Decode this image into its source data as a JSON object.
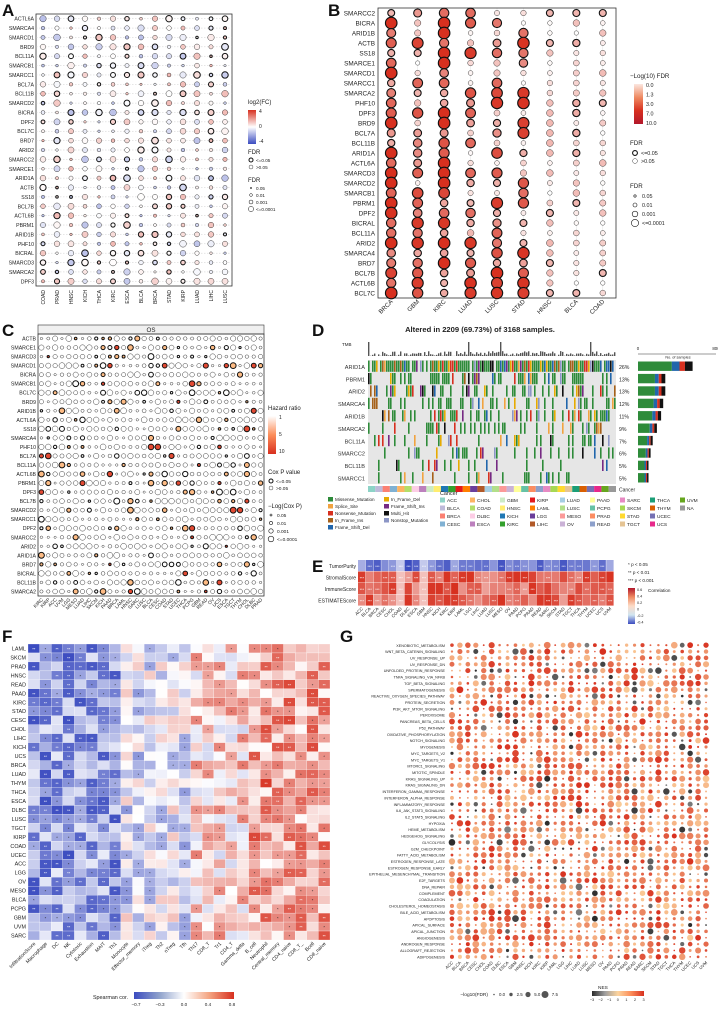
{
  "figure": {
    "panels": [
      {
        "letter": "A"
      },
      {
        "letter": "B"
      },
      {
        "letter": "C"
      },
      {
        "letter": "D"
      },
      {
        "letter": "E"
      },
      {
        "letter": "F"
      },
      {
        "letter": "G"
      }
    ]
  },
  "panelA": {
    "genes": [
      "ACTL6A",
      "SMARCA4",
      "SMARCD1",
      "BRD9",
      "BCL11A",
      "SMARCB1",
      "SMARCC1",
      "BCL7A",
      "BCL11B",
      "SMARCD2",
      "BICRA",
      "DPF2",
      "BCL7C",
      "BRD7",
      "ARID2",
      "SMARCC2",
      "SMARCE1",
      "ARID1A",
      "ACTB",
      "SS18",
      "BCL7B",
      "ACTL6B",
      "PBRM1",
      "ARID1B",
      "PHF10",
      "BICRAL",
      "SMARCD3",
      "SMARCA2",
      "DPF3"
    ],
    "cancers": [
      "COAD",
      "PRAD",
      "HNSC",
      "KICH",
      "THCA",
      "KIRC",
      "ESCA",
      "BLCA",
      "BRCA",
      "STAD",
      "KIRP",
      "LUAD",
      "LIHC",
      "LUSC"
    ],
    "legend": {
      "title": "log2(FC)",
      "ticks": [
        "4",
        "0",
        "-4"
      ],
      "fdr_title": "FDR",
      "fdr_items": [
        "<=0.05",
        ">0.05"
      ],
      "fdr2_title": "FDR",
      "fdr2_items": [
        "0.05",
        "0.01",
        "0.001",
        "<=0.0001"
      ]
    }
  },
  "panelB": {
    "genes": [
      "SMARCC2",
      "BICRA",
      "ARID1B",
      "ACTB",
      "SS18",
      "SMARCE1",
      "SMARCD1",
      "SMARCC1",
      "SMARCA2",
      "PHF10",
      "DPF3",
      "BRD9",
      "BCL7A",
      "BCL11B",
      "ARID1A",
      "ACTL6A",
      "SMARCD3",
      "SMARCD2",
      "SMARCB1",
      "PBRM1",
      "DPF2",
      "BICRAL",
      "BCL11A",
      "ARID2",
      "SMARCA4",
      "BRD7",
      "BCL7B",
      "ACTL6B",
      "BCL7C"
    ],
    "cancers": [
      "BRCA",
      "GBM",
      "KIRC",
      "LUAD",
      "LUSC",
      "STAD",
      "HNSC",
      "BLCA",
      "COAD"
    ],
    "legend": {
      "title": "−Log(10) FDR",
      "ticks": [
        "0.0",
        "1.3",
        "3.0",
        "7.0",
        "10.0"
      ],
      "fdr_title": "FDR",
      "fdr_items": [
        "<=0.05",
        ">0.05"
      ],
      "fdr2_title": "FDR",
      "fdr2_items": [
        "0.05",
        "0.01",
        "0.001",
        "<=0.0001"
      ]
    }
  },
  "panelC": {
    "title": "OS",
    "genes": [
      "ACTB",
      "SMARCE1",
      "SMARCD3",
      "SMARCD1",
      "BICRA",
      "SMARCB1",
      "BCL7C",
      "BRD9",
      "ARID1B",
      "ACTL6A",
      "SS18",
      "SMARCA4",
      "PHF10",
      "BCL7A",
      "BCL11A",
      "ACTL6B",
      "PBRM1",
      "DPF3",
      "BCL7B",
      "SMARCD2",
      "SMARCC1",
      "DPF2",
      "SMARCC2",
      "ARID2",
      "ARID1A",
      "BRD7",
      "BICRAL",
      "BCL11B",
      "SMARCA2"
    ],
    "cancers": [
      "KIRC",
      "KIRP",
      "ACC",
      "UVM",
      "LGG",
      "MESO",
      "LUAD",
      "LIHC",
      "SKCM",
      "KICH",
      "PAAD",
      "BRCA",
      "LAML",
      "HNSC",
      "SARC",
      "LUSC",
      "BLCA",
      "CESC",
      "COAD",
      "STAD",
      "UCEC",
      "THCA",
      "PCPG",
      "GBM",
      "READ",
      "OV",
      "UCS",
      "ESCA",
      "TGCT",
      "THYM",
      "CHOL",
      "DLBC",
      "PRAD"
    ],
    "legend": {
      "title": "Hazard ratio",
      "ticks": [
        "1",
        "5",
        "10"
      ],
      "cox_title": "Cox P value",
      "cox_items": [
        "<=0.05",
        ">0.05"
      ],
      "log_title": "−Log(Cox P)",
      "log_items": [
        "0.05",
        "0.01",
        "0.001",
        "<=0.0001"
      ]
    }
  },
  "panelD": {
    "title": "Altered in 2209 (69.73%) of 3168 samples.",
    "tmb_label": "TMB",
    "genes": [
      {
        "name": "ARID1A",
        "pct": "26%"
      },
      {
        "name": "PBRM1",
        "pct": "13%"
      },
      {
        "name": "ARID2",
        "pct": "13%"
      },
      {
        "name": "SMARCA4",
        "pct": "12%"
      },
      {
        "name": "ARID1B",
        "pct": "11%"
      },
      {
        "name": "SMARCA2",
        "pct": "9%"
      },
      {
        "name": "BCL11A",
        "pct": "7%"
      },
      {
        "name": "SMARCC2",
        "pct": "6%"
      },
      {
        "name": "BCL11B",
        "pct": "5%"
      },
      {
        "name": "SMARCC1",
        "pct": "5%"
      }
    ],
    "axis_label": "No. of samples",
    "axis_ticks": [
      "0",
      "800"
    ],
    "cancer_label": "Cancer",
    "mutation_legend": [
      {
        "label": "Missense_Mutation",
        "color": "#2e8b3a"
      },
      {
        "label": "Splice_Site",
        "color": "#f1a340"
      },
      {
        "label": "Nonsense_Mutation",
        "color": "#d7301f"
      },
      {
        "label": "In_Frame_Ins",
        "color": "#a6611a"
      },
      {
        "label": "Frame_Shift_Del",
        "color": "#2166ac"
      },
      {
        "label": "In_Frame_Del",
        "color": "#e6ab02"
      },
      {
        "label": "Frame_Shift_Ins",
        "color": "#762a83"
      },
      {
        "label": "Multi_Hit",
        "color": "#111111"
      },
      {
        "label": "Nonstop_Mutation",
        "color": "#8c96c6"
      }
    ],
    "cancer_legend_title": "Cancer",
    "cancer_legend": [
      {
        "label": "ACC",
        "color": "#8dd3c7"
      },
      {
        "label": "BLCA",
        "color": "#bebada"
      },
      {
        "label": "BRCA",
        "color": "#fb8072"
      },
      {
        "label": "CESC",
        "color": "#80b1d3"
      },
      {
        "label": "CHOL",
        "color": "#fdb462"
      },
      {
        "label": "COAD",
        "color": "#b3de69"
      },
      {
        "label": "DLBC",
        "color": "#fccde5"
      },
      {
        "label": "ESCA",
        "color": "#bc80bd"
      },
      {
        "label": "GBM",
        "color": "#ccebc5"
      },
      {
        "label": "HNSC",
        "color": "#ffed6f"
      },
      {
        "label": "KICH",
        "color": "#1f78b4"
      },
      {
        "label": "KIRC",
        "color": "#33a02c"
      },
      {
        "label": "KIRP",
        "color": "#e31a1c"
      },
      {
        "label": "LAML",
        "color": "#ff7f00"
      },
      {
        "label": "LGG",
        "color": "#6a3d9a"
      },
      {
        "label": "LIHC",
        "color": "#b15928"
      },
      {
        "label": "LUAD",
        "color": "#a6cee3"
      },
      {
        "label": "LUSC",
        "color": "#b2df8a"
      },
      {
        "label": "MESO",
        "color": "#fb9a99"
      },
      {
        "label": "OV",
        "color": "#cab2d6"
      },
      {
        "label": "PAAD",
        "color": "#ffff99"
      },
      {
        "label": "PCPG",
        "color": "#66c2a5"
      },
      {
        "label": "PRAD",
        "color": "#fc8d62"
      },
      {
        "label": "READ",
        "color": "#8da0cb"
      },
      {
        "label": "SARC",
        "color": "#e78ac3"
      },
      {
        "label": "SKCM",
        "color": "#a6d854"
      },
      {
        "label": "STAD",
        "color": "#ffd92f"
      },
      {
        "label": "TGCT",
        "color": "#e5c494"
      },
      {
        "label": "THCA",
        "color": "#1b9e77"
      },
      {
        "label": "THYM",
        "color": "#d95f02"
      },
      {
        "label": "UCEC",
        "color": "#7570b3"
      },
      {
        "label": "UCS",
        "color": "#e7298a"
      },
      {
        "label": "UVM",
        "color": "#66a61e"
      },
      {
        "label": "NA",
        "color": "#999999"
      }
    ]
  },
  "panelE": {
    "rows": [
      "TumorPurity",
      "StromalScore",
      "ImmuneScore",
      "ESTIMATEScore"
    ],
    "cancers": [
      "ACC",
      "BLCA",
      "BRCA",
      "CESC",
      "CHOL",
      "COAD",
      "DLBC",
      "ESCA",
      "GBM",
      "HNSC",
      "KICH",
      "KIRC",
      "KIRP",
      "LAML",
      "LGG",
      "LIHC",
      "LUAD",
      "LUSC",
      "MESO",
      "OV",
      "PAAD",
      "PCPG",
      "PRAD",
      "READ",
      "SARC",
      "SKCM",
      "STAD",
      "TGCT",
      "THCA",
      "THYM",
      "UCEC",
      "UCS",
      "UVM"
    ],
    "sig_legend": [
      "* p < 0.05",
      "** p < 0.01",
      "*** p < 0.001"
    ],
    "color_title": "Correlation",
    "color_ticks": [
      "0.6",
      "0.4",
      "0.2",
      "0",
      "-0.2",
      "-0.4"
    ]
  },
  "panelF": {
    "rows": [
      "LAML",
      "SKCM",
      "PRAD",
      "HNSC",
      "READ",
      "PAAD",
      "KIRC",
      "STAD",
      "CESC",
      "CHOL",
      "LIHC",
      "KICH",
      "UCS",
      "BRCA",
      "LUAD",
      "THYM",
      "THCA",
      "ESCA",
      "DLBC",
      "LUSC",
      "TGCT",
      "KIRP",
      "COAD",
      "UCEC",
      "ACC",
      "LGG",
      "OV",
      "MESO",
      "BLCA",
      "PCPG",
      "GBM",
      "UVM",
      "SARC"
    ],
    "cols": [
      "InfiltrationScore",
      "Macrophage",
      "DC",
      "NK",
      "Cytotoxic",
      "Exhaustion",
      "MAIT",
      "Th1",
      "Monocyte",
      "Effector_memory",
      "iTreg",
      "Th2",
      "nTreg",
      "Tfh",
      "Th17",
      "CD8_T",
      "Tr1",
      "CD4_T",
      "Gamma_delta",
      "B_cell",
      "Neutrophil",
      "Central_memory",
      "CD4_naive",
      "CD8_T_",
      "Bcell",
      "CD8_naive"
    ],
    "color_title": "Spearman cor.",
    "color_ticks": [
      "−0.7",
      "−0.3",
      "0.0",
      "0.4",
      "0.8"
    ]
  },
  "panelG": {
    "pathways": [
      "XENOBIOTIC_METABOLISM",
      "WNT_BETA_CATENIN_SIGNALING",
      "UV_RESPONSE_UP",
      "UV_RESPONSE_DN",
      "UNFOLDED_PROTEIN_RESPONSE",
      "TNFA_SIGNALING_VIA_NFKB",
      "TGF_BETA_SIGNALING",
      "SPERMATOGENESIS",
      "REACTIVE_OXYGEN_SPECIES_PATHWAY",
      "PROTEIN_SECRETION",
      "PI3K_AKT_MTOR_SIGNALING",
      "PEROXISOME",
      "PANCREAS_BETA_CELLS",
      "P53_PATHWAY",
      "OXIDATIVE_PHOSPHORYLATION",
      "NOTCH_SIGNALING",
      "MYOGENESIS",
      "MYC_TARGETS_V2",
      "MYC_TARGETS_V1",
      "MTORC1_SIGNALING",
      "MITOTIC_SPINDLE",
      "KRAS_SIGNALING_UP",
      "KRAS_SIGNALING_DN",
      "INTERFERON_GAMMA_RESPONSE",
      "INTERFERON_ALPHA_RESPONSE",
      "INFLAMMATORY_RESPONSE",
      "IL6_JAK_STAT3_SIGNALING",
      "IL2_STAT5_SIGNALING",
      "HYPOXIA",
      "HEME_METABOLISM",
      "HEDGEHOG_SIGNALING",
      "GLYCOLYSIS",
      "G2M_CHECKPOINT",
      "FATTY_ACID_METABOLISM",
      "ESTROGEN_RESPONSE_LATE",
      "ESTROGEN_RESPONSE_EARLY",
      "EPITHELIAL_MESENCHYMAL_TRANSITION",
      "E2F_TARGETS",
      "DNA_REPAIR",
      "COMPLEMENT",
      "COAGULATION",
      "CHOLESTEROL_HOMEOSTASIS",
      "BILE_ACID_METABOLISM",
      "APOPTOSIS",
      "APICAL_SURFACE",
      "APICAL_JUNCTION",
      "ANGIOGENESIS",
      "ANDROGEN_RESPONSE",
      "ALLOGRAFT_REJECTION",
      "ADIPOGENESIS"
    ],
    "cancers": [
      "ACC",
      "BLCA",
      "BRCA",
      "CESC",
      "CHOL",
      "COAD",
      "DLBC",
      "ESCA",
      "GBM",
      "HNSC",
      "KICH",
      "KIRC",
      "KIRP",
      "LAML",
      "LGG",
      "LIHC",
      "LUAD",
      "LUSC",
      "MESO",
      "OV",
      "PAAD",
      "PCPG",
      "PRAD",
      "READ",
      "SARC",
      "SKCM",
      "STAD",
      "TGCT",
      "THCA",
      "THYM",
      "UCEC",
      "UCS",
      "UVM"
    ],
    "size_title": "−log10(FDR)",
    "size_items": [
      "0.0",
      "2.5",
      "5.0",
      "7.5"
    ],
    "nes_title": "NES",
    "nes_ticks": [
      "−3",
      "−2",
      "−1",
      "0",
      "1",
      "2",
      "3"
    ]
  },
  "colors": {
    "blue": "#3b4cc0",
    "red": "#d7301f",
    "grid": "#bfbfbf"
  }
}
